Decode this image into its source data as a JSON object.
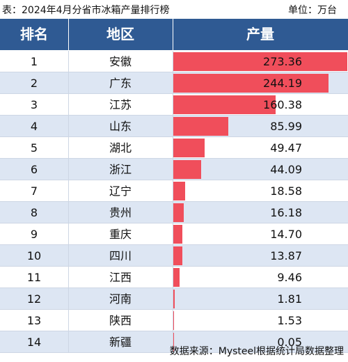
{
  "caption": {
    "title": "表：2024年4月分省市冰箱产量排行榜",
    "unit": "单位：万台"
  },
  "header": {
    "rank": "排名",
    "region": "地区",
    "production": "产量"
  },
  "source": "数据来源：Mysteel根据统计局数据整理",
  "colors": {
    "header_bg": "#2f5a93",
    "bar": "#f04e5b",
    "stripe": "#dde6f3"
  },
  "chart_data": {
    "type": "table",
    "columns": [
      "排名",
      "地区",
      "产量"
    ],
    "rows": [
      {
        "rank": "1",
        "region": "安徽",
        "value": 273.36,
        "label": "273.36"
      },
      {
        "rank": "2",
        "region": "广东",
        "value": 244.19,
        "label": "244.19"
      },
      {
        "rank": "3",
        "region": "江苏",
        "value": 160.38,
        "label": "160.38"
      },
      {
        "rank": "4",
        "region": "山东",
        "value": 85.99,
        "label": "85.99"
      },
      {
        "rank": "5",
        "region": "湖北",
        "value": 49.47,
        "label": "49.47"
      },
      {
        "rank": "6",
        "region": "浙江",
        "value": 44.09,
        "label": "44.09"
      },
      {
        "rank": "7",
        "region": "辽宁",
        "value": 18.58,
        "label": "18.58"
      },
      {
        "rank": "8",
        "region": "贵州",
        "value": 16.18,
        "label": "16.18"
      },
      {
        "rank": "9",
        "region": "重庆",
        "value": 14.7,
        "label": "14.70"
      },
      {
        "rank": "10",
        "region": "四川",
        "value": 13.87,
        "label": "13.87"
      },
      {
        "rank": "11",
        "region": "江西",
        "value": 9.46,
        "label": "9.46"
      },
      {
        "rank": "12",
        "region": "河南",
        "value": 1.81,
        "label": "1.81"
      },
      {
        "rank": "13",
        "region": "陕西",
        "value": 1.53,
        "label": "1.53"
      },
      {
        "rank": "14",
        "region": "新疆",
        "value": 0.05,
        "label": "0.05"
      }
    ]
  }
}
